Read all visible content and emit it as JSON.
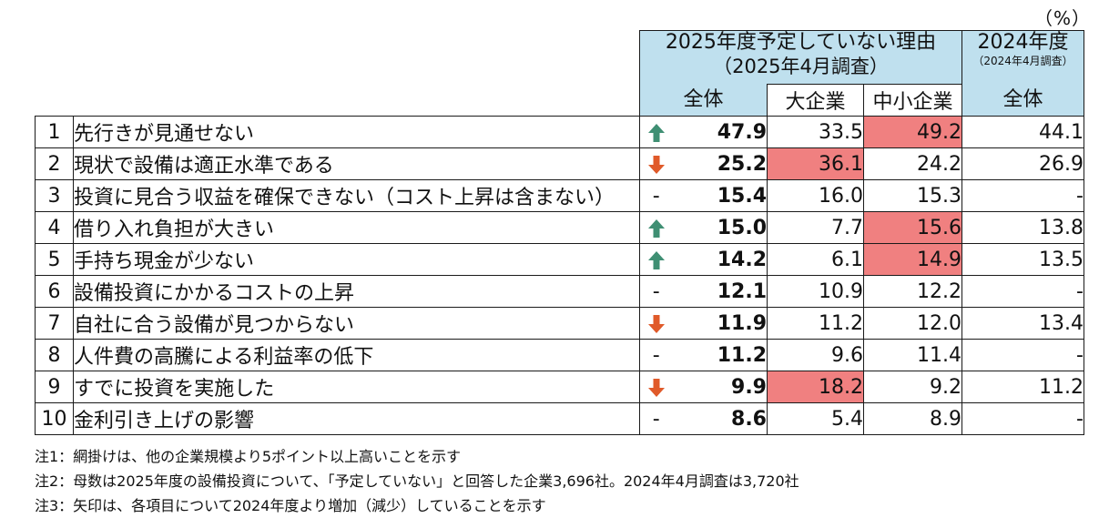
{
  "unit": "（%）",
  "header": {
    "main_line1": "2025年度予定していない理由",
    "main_line2": "（2025年4月調査）",
    "prev_line1": "2024年度",
    "prev_line2": "（2024年4月調査）",
    "col_total": "全体",
    "col_large": "大企業",
    "col_sme": "中小企業",
    "col_prev_total": "全体"
  },
  "rows": [
    {
      "no": "1",
      "label": "先行きが見通せない",
      "trend": "up",
      "total": "47.9",
      "large": "33.5",
      "sme": "49.2",
      "prev": "44.1"
    },
    {
      "no": "2",
      "label": "現状で設備は適正水準である",
      "trend": "down",
      "total": "25.2",
      "large": "36.1",
      "sme": "24.2",
      "prev": "26.9"
    },
    {
      "no": "3",
      "label": "投資に見合う収益を確保できない（コスト上昇は含まない）",
      "trend": "none",
      "total": "15.4",
      "large": "16.0",
      "sme": "15.3",
      "prev": "-"
    },
    {
      "no": "4",
      "label": "借り入れ負担が大きい",
      "trend": "up",
      "total": "15.0",
      "large": "7.7",
      "sme": "15.6",
      "prev": "13.8"
    },
    {
      "no": "5",
      "label": "手持ち現金が少ない",
      "trend": "up",
      "total": "14.2",
      "large": "6.1",
      "sme": "14.9",
      "prev": "13.5"
    },
    {
      "no": "6",
      "label": "設備投資にかかるコストの上昇",
      "trend": "none",
      "total": "12.1",
      "large": "10.9",
      "sme": "12.2",
      "prev": "-"
    },
    {
      "no": "7",
      "label": "自社に合う設備が見つからない",
      "trend": "down",
      "total": "11.9",
      "large": "11.2",
      "sme": "12.0",
      "prev": "13.4"
    },
    {
      "no": "8",
      "label": "人件費の高騰による利益率の低下",
      "trend": "none",
      "total": "11.2",
      "large": "9.6",
      "sme": "11.4",
      "prev": "-"
    },
    {
      "no": "9",
      "label": "すでに投資を実施した",
      "trend": "down",
      "total": "9.9",
      "large": "18.2",
      "sme": "9.2",
      "prev": "11.2"
    },
    {
      "no": "10",
      "label": "金利引き上げの影響",
      "trend": "none",
      "total": "8.6",
      "large": "5.4",
      "sme": "8.9",
      "prev": "-"
    }
  ],
  "highlight": {
    "large": [
      false,
      true,
      false,
      false,
      false,
      false,
      false,
      false,
      true,
      false
    ],
    "sme": [
      true,
      false,
      false,
      true,
      true,
      false,
      false,
      false,
      false,
      false
    ]
  },
  "dash_symbol": "-",
  "colors": {
    "header_bg": "#bfe0ee",
    "highlight": "#f08080",
    "arrow_up": "#3f8f73",
    "arrow_down": "#e05a2a"
  },
  "notes": [
    "注1：網掛けは、他の企業規模より5ポイント以上高いことを示す",
    "注2：母数は2025年度の設備投資について、「予定していない」と回答した企業3,696社。2024年4月調査は3,720社",
    "注3：矢印は、各項目について2024年度より増加（減少）していることを示す"
  ]
}
